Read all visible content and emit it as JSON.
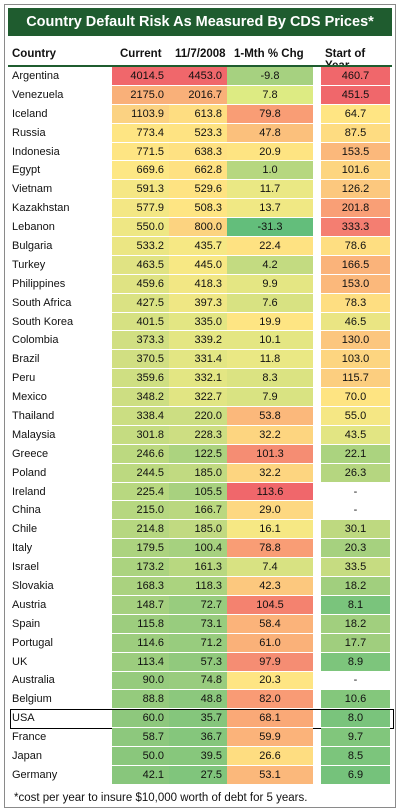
{
  "title": "Country Default Risk As Measured By CDS Prices*",
  "headers": {
    "country": "Country",
    "current": "Current",
    "nov": "11/7/2008",
    "chg": "1-Mth % Chg",
    "start": "Start of Year"
  },
  "rows": [
    {
      "country": "Argentina",
      "current": "4014.5",
      "nov": "4453.0",
      "chg": "-9.8",
      "start": "460.7",
      "cc": "#f0676b",
      "nc": "#f0676b",
      "gc": "#a6d180",
      "sc": "#f0676b"
    },
    {
      "country": "Venezuela",
      "current": "2175.0",
      "nov": "2016.7",
      "chg": "7.8",
      "start": "451.5",
      "cc": "#f9b079",
      "nc": "#f9b079",
      "gc": "#ddeb83",
      "sc": "#f0676b"
    },
    {
      "country": "Iceland",
      "current": "1103.9",
      "nov": "613.8",
      "chg": "79.8",
      "start": "64.7",
      "cc": "#fbd282",
      "nc": "#fedd81",
      "gc": "#f99d75",
      "sc": "#ffe583"
    },
    {
      "country": "Russia",
      "current": "773.4",
      "nov": "523.3",
      "chg": "47.8",
      "start": "87.5",
      "cc": "#fee583",
      "nc": "#fee382",
      "gc": "#fbc07c",
      "sc": "#fedc81"
    },
    {
      "country": "Indonesia",
      "current": "771.5",
      "nov": "638.3",
      "chg": "20.9",
      "start": "153.5",
      "cc": "#fee583",
      "nc": "#fee182",
      "gc": "#fee482",
      "sc": "#fbb87b"
    },
    {
      "country": "Egypt",
      "current": "669.6",
      "nov": "662.8",
      "chg": "1.0",
      "start": "101.6",
      "cc": "#fde784",
      "nc": "#fee182",
      "gc": "#b6d780",
      "sc": "#fdd580"
    },
    {
      "country": "Vietnam",
      "current": "591.3",
      "nov": "529.6",
      "chg": "11.7",
      "start": "126.2",
      "cc": "#f5e784",
      "nc": "#fee382",
      "gc": "#eae884",
      "sc": "#fcc87e"
    },
    {
      "country": "Kazakhstan",
      "current": "577.9",
      "nov": "508.3",
      "chg": "13.7",
      "start": "201.8",
      "cc": "#f3e784",
      "nc": "#fee583",
      "gc": "#f0e884",
      "sc": "#f99f76"
    },
    {
      "country": "Lebanon",
      "current": "550.0",
      "nov": "800.0",
      "chg": "-31.3",
      "start": "333.3",
      "cc": "#eee784",
      "nc": "#fcd380",
      "gc": "#63be7b",
      "sc": "#f47e71"
    },
    {
      "country": "Bulgaria",
      "current": "533.2",
      "nov": "435.7",
      "chg": "22.4",
      "start": "78.6",
      "cc": "#ebe683",
      "nc": "#f6e884",
      "gc": "#fee282",
      "sc": "#fede81"
    },
    {
      "country": "Turkey",
      "current": "463.5",
      "nov": "445.0",
      "chg": "4.2",
      "start": "166.5",
      "cc": "#e0e383",
      "nc": "#f7e884",
      "gc": "#c3db81",
      "sc": "#fab37a"
    },
    {
      "country": "Philippines",
      "current": "459.6",
      "nov": "418.3",
      "chg": "9.9",
      "start": "153.0",
      "cc": "#dfe383",
      "nc": "#f2e784",
      "gc": "#e4e683",
      "sc": "#fbb87b"
    },
    {
      "country": "South Africa",
      "current": "427.5",
      "nov": "397.3",
      "chg": "7.6",
      "start": "78.3",
      "cc": "#dae283",
      "nc": "#efe784",
      "gc": "#d8e282",
      "sc": "#fede81"
    },
    {
      "country": "South Korea",
      "current": "401.5",
      "nov": "335.0",
      "chg": "19.9",
      "start": "46.5",
      "cc": "#d6e182",
      "nc": "#e3e683",
      "gc": "#fee583",
      "sc": "#eae583"
    },
    {
      "country": "Colombia",
      "current": "373.3",
      "nov": "339.2",
      "chg": "10.1",
      "start": "130.0",
      "cc": "#d1df82",
      "nc": "#e4e683",
      "gc": "#e4e683",
      "sc": "#fcc67e"
    },
    {
      "country": "Brazil",
      "current": "370.5",
      "nov": "331.4",
      "chg": "11.8",
      "start": "103.0",
      "cc": "#d1df82",
      "nc": "#e3e683",
      "gc": "#eae884",
      "sc": "#fdd580"
    },
    {
      "country": "Peru",
      "current": "359.6",
      "nov": "332.1",
      "chg": "8.3",
      "start": "115.7",
      "cc": "#cfdf82",
      "nc": "#e3e683",
      "gc": "#dbe382",
      "sc": "#fcce7f"
    },
    {
      "country": "Mexico",
      "current": "348.2",
      "nov": "322.7",
      "chg": "7.9",
      "start": "70.0",
      "cc": "#cdde82",
      "nc": "#e1e583",
      "gc": "#d9e382",
      "sc": "#fee482"
    },
    {
      "country": "Thailand",
      "current": "338.4",
      "nov": "220.0",
      "chg": "53.8",
      "start": "55.0",
      "cc": "#cbde82",
      "nc": "#ccde82",
      "gc": "#fbb87b",
      "sc": "#f5e784"
    },
    {
      "country": "Malaysia",
      "current": "301.8",
      "nov": "228.3",
      "chg": "32.2",
      "start": "43.5",
      "cc": "#c5dc81",
      "nc": "#cdde82",
      "gc": "#fdd580",
      "sc": "#e2e583"
    },
    {
      "country": "Greece",
      "current": "246.6",
      "nov": "122.5",
      "chg": "101.3",
      "start": "22.1",
      "cc": "#bcd980",
      "nc": "#acd37f",
      "gc": "#f58d73",
      "sc": "#abd37f"
    },
    {
      "country": "Poland",
      "current": "244.5",
      "nov": "185.0",
      "chg": "32.2",
      "start": "26.3",
      "cc": "#bcd980",
      "nc": "#c1da81",
      "gc": "#fdd580",
      "sc": "#b5d680"
    },
    {
      "country": "Ireland",
      "current": "225.4",
      "nov": "105.5",
      "chg": "113.6",
      "start": "-",
      "cc": "#b8d880",
      "nc": "#a8d17f",
      "gc": "#f0676b",
      "sc": "#ffffff"
    },
    {
      "country": "China",
      "current": "215.0",
      "nov": "166.7",
      "chg": "29.0",
      "start": "-",
      "cc": "#b6d780",
      "nc": "#bad880",
      "gc": "#fdd881",
      "sc": "#ffffff"
    },
    {
      "country": "Chile",
      "current": "214.8",
      "nov": "185.0",
      "chg": "16.1",
      "start": "30.1",
      "cc": "#b6d780",
      "nc": "#c1da81",
      "gc": "#f6e884",
      "sc": "#bed980"
    },
    {
      "country": "Italy",
      "current": "179.5",
      "nov": "100.4",
      "chg": "78.8",
      "start": "20.3",
      "cc": "#acd37f",
      "nc": "#a6d17f",
      "gc": "#f99d75",
      "sc": "#a6d17f"
    },
    {
      "country": "Israel",
      "current": "173.2",
      "nov": "161.3",
      "chg": "7.4",
      "start": "33.5",
      "cc": "#abd37f",
      "nc": "#b8d880",
      "gc": "#d8e282",
      "sc": "#c6dc81"
    },
    {
      "country": "Slovakia",
      "current": "168.3",
      "nov": "118.3",
      "chg": "42.3",
      "start": "18.2",
      "cc": "#aad27f",
      "nc": "#abd37f",
      "gc": "#fcc87e",
      "sc": "#a1cf7e"
    },
    {
      "country": "Austria",
      "current": "148.7",
      "nov": "72.7",
      "chg": "104.5",
      "start": "8.1",
      "cc": "#a5d07f",
      "nc": "#98cc7e",
      "gc": "#f4826f",
      "sc": "#7ac47c"
    },
    {
      "country": "Spain",
      "current": "115.8",
      "nov": "73.1",
      "chg": "58.4",
      "start": "18.2",
      "cc": "#9dcd7e",
      "nc": "#98cc7e",
      "gc": "#fbb37a",
      "sc": "#a1cf7e"
    },
    {
      "country": "Portugal",
      "current": "114.6",
      "nov": "71.2",
      "chg": "61.0",
      "start": "17.7",
      "cc": "#9dcd7e",
      "nc": "#98cc7e",
      "gc": "#fab179",
      "sc": "#a0ce7e"
    },
    {
      "country": "UK",
      "current": "113.4",
      "nov": "57.3",
      "chg": "97.9",
      "start": "8.9",
      "cc": "#9ccd7e",
      "nc": "#91c97d",
      "gc": "#f58d73",
      "sc": "#7dc57c"
    },
    {
      "country": "Australia",
      "current": "90.0",
      "nov": "74.8",
      "chg": "20.3",
      "start": "-",
      "cc": "#96cb7d",
      "nc": "#99cc7e",
      "gc": "#fee583",
      "sc": "#ffffff"
    },
    {
      "country": "Belgium",
      "current": "88.8",
      "nov": "48.8",
      "chg": "82.0",
      "start": "10.6",
      "cc": "#95cb7d",
      "nc": "#8cc87d",
      "gc": "#f99b75",
      "sc": "#84c77c"
    },
    {
      "country": "USA",
      "current": "60.0",
      "nov": "35.7",
      "chg": "68.1",
      "start": "8.0",
      "cc": "#8ec87d",
      "nc": "#85c67c",
      "gc": "#faa977",
      "sc": "#7ac47c"
    },
    {
      "country": "France",
      "current": "58.7",
      "nov": "36.7",
      "chg": "59.9",
      "start": "9.7",
      "cc": "#8dc87d",
      "nc": "#85c67c",
      "gc": "#fbb37a",
      "sc": "#81c67c"
    },
    {
      "country": "Japan",
      "current": "50.0",
      "nov": "39.5",
      "chg": "26.6",
      "start": "8.5",
      "cc": "#8ac77c",
      "nc": "#87c77c",
      "gc": "#fedd81",
      "sc": "#7cc57c"
    },
    {
      "country": "Germany",
      "current": "42.1",
      "nov": "27.5",
      "chg": "53.1",
      "start": "6.9",
      "cc": "#88c67c",
      "nc": "#80c57c",
      "gc": "#fbb87b",
      "sc": "#75c27b"
    }
  ],
  "highlighted_country": "USA",
  "footnote": "*cost per year to insure $10,000 worth of debt for 5 years."
}
